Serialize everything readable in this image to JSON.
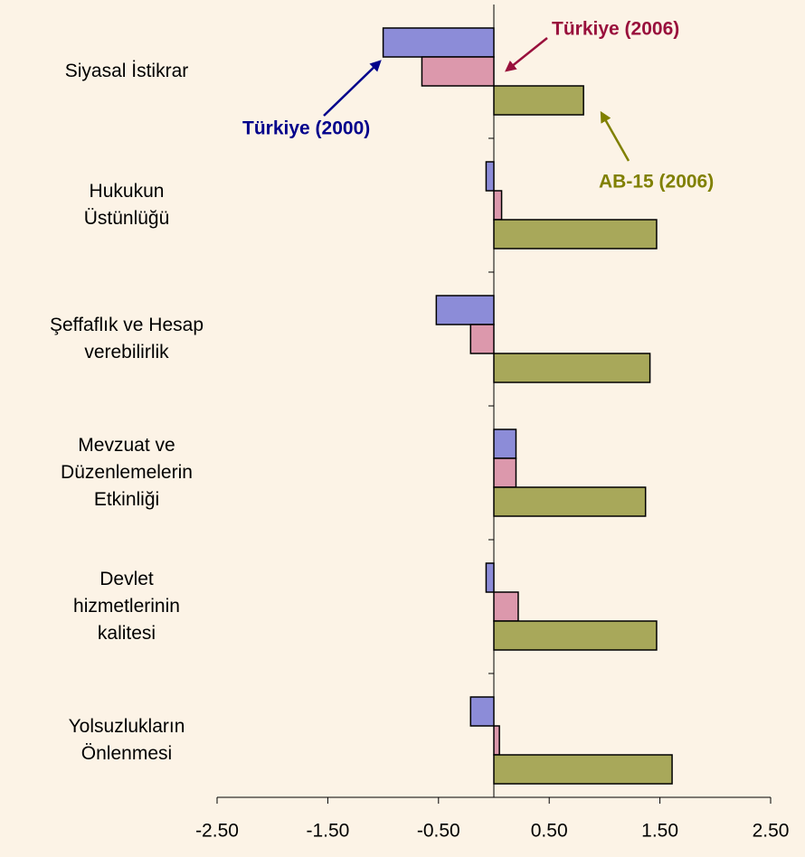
{
  "chart_data": {
    "type": "bar",
    "orientation": "horizontal",
    "categories": [
      "Siyasal İstikrar",
      "Hukukun\nÜstünlüğü",
      "Şeffaflık ve Hesap\nverebilirlik",
      "Mevzuat ve\nDüzenlemelerin\nEtkinliği",
      "Devlet\nhizmetlerinin\nkalitesi",
      "Yolsuzlukların\nÖnlenmesi"
    ],
    "series": [
      {
        "name": "Türkiye (2000)",
        "color": "#8c8cd8",
        "label_color": "#00008b",
        "values": [
          -1.0,
          -0.07,
          -0.52,
          0.2,
          -0.07,
          -0.21
        ]
      },
      {
        "name": "Türkiye (2006)",
        "color": "#dc98ac",
        "label_color": "#99103c",
        "values": [
          -0.65,
          0.07,
          -0.21,
          0.2,
          0.22,
          0.05
        ]
      },
      {
        "name": "AB-15 (2006)",
        "color": "#a8a85a",
        "label_color": "#808000",
        "values": [
          0.81,
          1.47,
          1.41,
          1.37,
          1.47,
          1.61
        ]
      }
    ],
    "xlim": [
      -2.5,
      2.5
    ],
    "xticks": [
      {
        "value": -2.5,
        "label": "-2.50"
      },
      {
        "value": -1.5,
        "label": "-1.50"
      },
      {
        "value": -0.5,
        "label": "-0.50"
      },
      {
        "value": 0.5,
        "label": "0.50"
      },
      {
        "value": 1.5,
        "label": "1.50"
      },
      {
        "value": 2.5,
        "label": "2.50"
      }
    ],
    "grid": false
  }
}
